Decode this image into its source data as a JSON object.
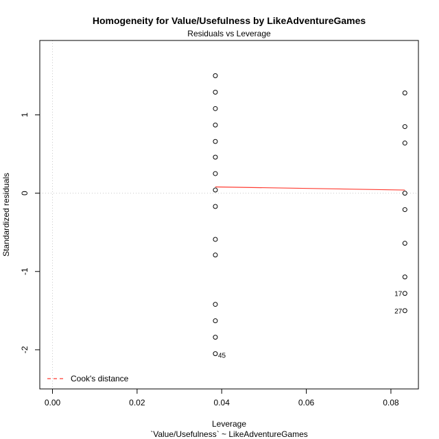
{
  "chart_data": {
    "type": "scatter",
    "title": "Homogeneity for Value/Usefulness by LikeAdventureGames",
    "subtitle": "Residuals vs Leverage",
    "xlabel": "Leverage",
    "xlabel2": "`Value/Usefulness` ~ LikeAdventureGames",
    "ylabel": "Standardized residuals",
    "xlim": [
      -0.003,
      0.0865
    ],
    "ylim": [
      -2.5,
      1.95
    ],
    "x_ticks": [
      0.0,
      0.02,
      0.04,
      0.06,
      0.08
    ],
    "x_tick_labels": [
      "0.00",
      "0.02",
      "0.04",
      "0.06",
      "0.08"
    ],
    "y_ticks": [
      -2,
      -1,
      0,
      1
    ],
    "y_tick_labels": [
      "-2",
      "-1",
      "0",
      "1"
    ],
    "grid": "dotted reference lines at x=0 and y=0",
    "points": [
      {
        "x": 0.0385,
        "y": 1.5
      },
      {
        "x": 0.0385,
        "y": 1.29
      },
      {
        "x": 0.0385,
        "y": 1.08
      },
      {
        "x": 0.0385,
        "y": 0.87
      },
      {
        "x": 0.0385,
        "y": 0.66
      },
      {
        "x": 0.0385,
        "y": 0.46
      },
      {
        "x": 0.0385,
        "y": 0.25
      },
      {
        "x": 0.0385,
        "y": 0.04
      },
      {
        "x": 0.0385,
        "y": -0.17
      },
      {
        "x": 0.0385,
        "y": -0.59
      },
      {
        "x": 0.0385,
        "y": -0.79
      },
      {
        "x": 0.0385,
        "y": -1.42
      },
      {
        "x": 0.0385,
        "y": -1.63
      },
      {
        "x": 0.0385,
        "y": -1.84
      },
      {
        "x": 0.0385,
        "y": -2.05,
        "label": "45"
      },
      {
        "x": 0.0833,
        "y": 1.28
      },
      {
        "x": 0.0833,
        "y": 0.85
      },
      {
        "x": 0.0833,
        "y": 0.64
      },
      {
        "x": 0.0833,
        "y": 0.0
      },
      {
        "x": 0.0833,
        "y": -0.21
      },
      {
        "x": 0.0833,
        "y": -0.64
      },
      {
        "x": 0.0833,
        "y": -1.07
      },
      {
        "x": 0.0833,
        "y": -1.28,
        "label": "17"
      },
      {
        "x": 0.0833,
        "y": -1.5,
        "label": "27"
      }
    ],
    "smooth_line": {
      "x": [
        0.0385,
        0.0833
      ],
      "y": [
        0.08,
        0.04
      ],
      "color": "#ff3b30"
    },
    "legend": {
      "position": "bottom-left",
      "entries": [
        {
          "label": "Cook's distance",
          "color": "#ff3b30",
          "style": "dashed"
        }
      ]
    },
    "point_color": "#000000",
    "grid_color": "#c8c8c8"
  }
}
